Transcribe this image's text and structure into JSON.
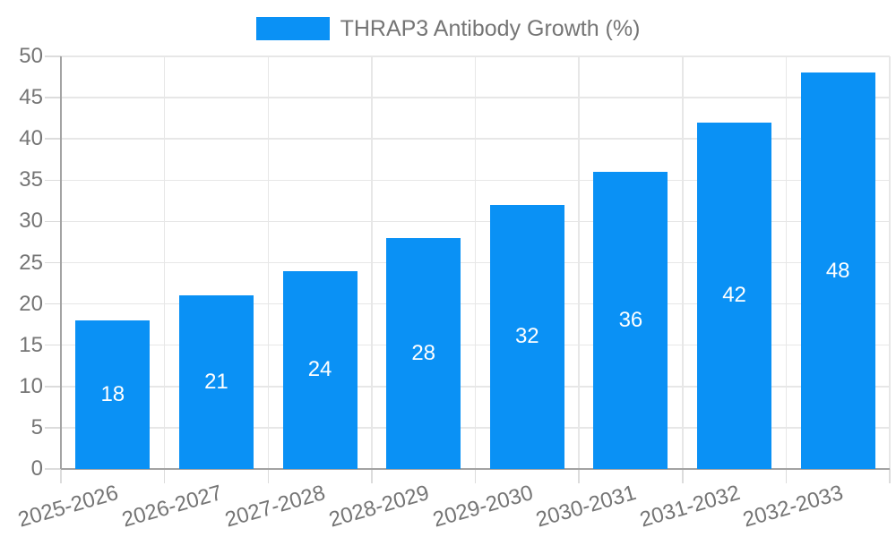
{
  "chart_data": {
    "type": "bar",
    "title": "THRAP3 Antibody Growth (%)",
    "categories": [
      "2025-2026",
      "2026-2027",
      "2027-2028",
      "2028-2029",
      "2029-2030",
      "2030-2031",
      "2031-2032",
      "2032-2033"
    ],
    "values": [
      18,
      21,
      24,
      28,
      32,
      36,
      42,
      48
    ],
    "yticks": [
      0,
      5,
      10,
      15,
      20,
      25,
      30,
      35,
      40,
      45,
      50
    ],
    "ylim": [
      0,
      50
    ],
    "xlabel": "",
    "ylabel": "",
    "grid": true,
    "legend_position": "top-center",
    "bar_label_position": "inside-center"
  },
  "colors": {
    "bar": "#0a91f5",
    "bar_value_text": "#ffffff",
    "tick_text": "#757575",
    "legend_text": "#757575",
    "gridline": "#e7e7e7",
    "axis_line": "#a3a3a3",
    "background": "#ffffff"
  }
}
